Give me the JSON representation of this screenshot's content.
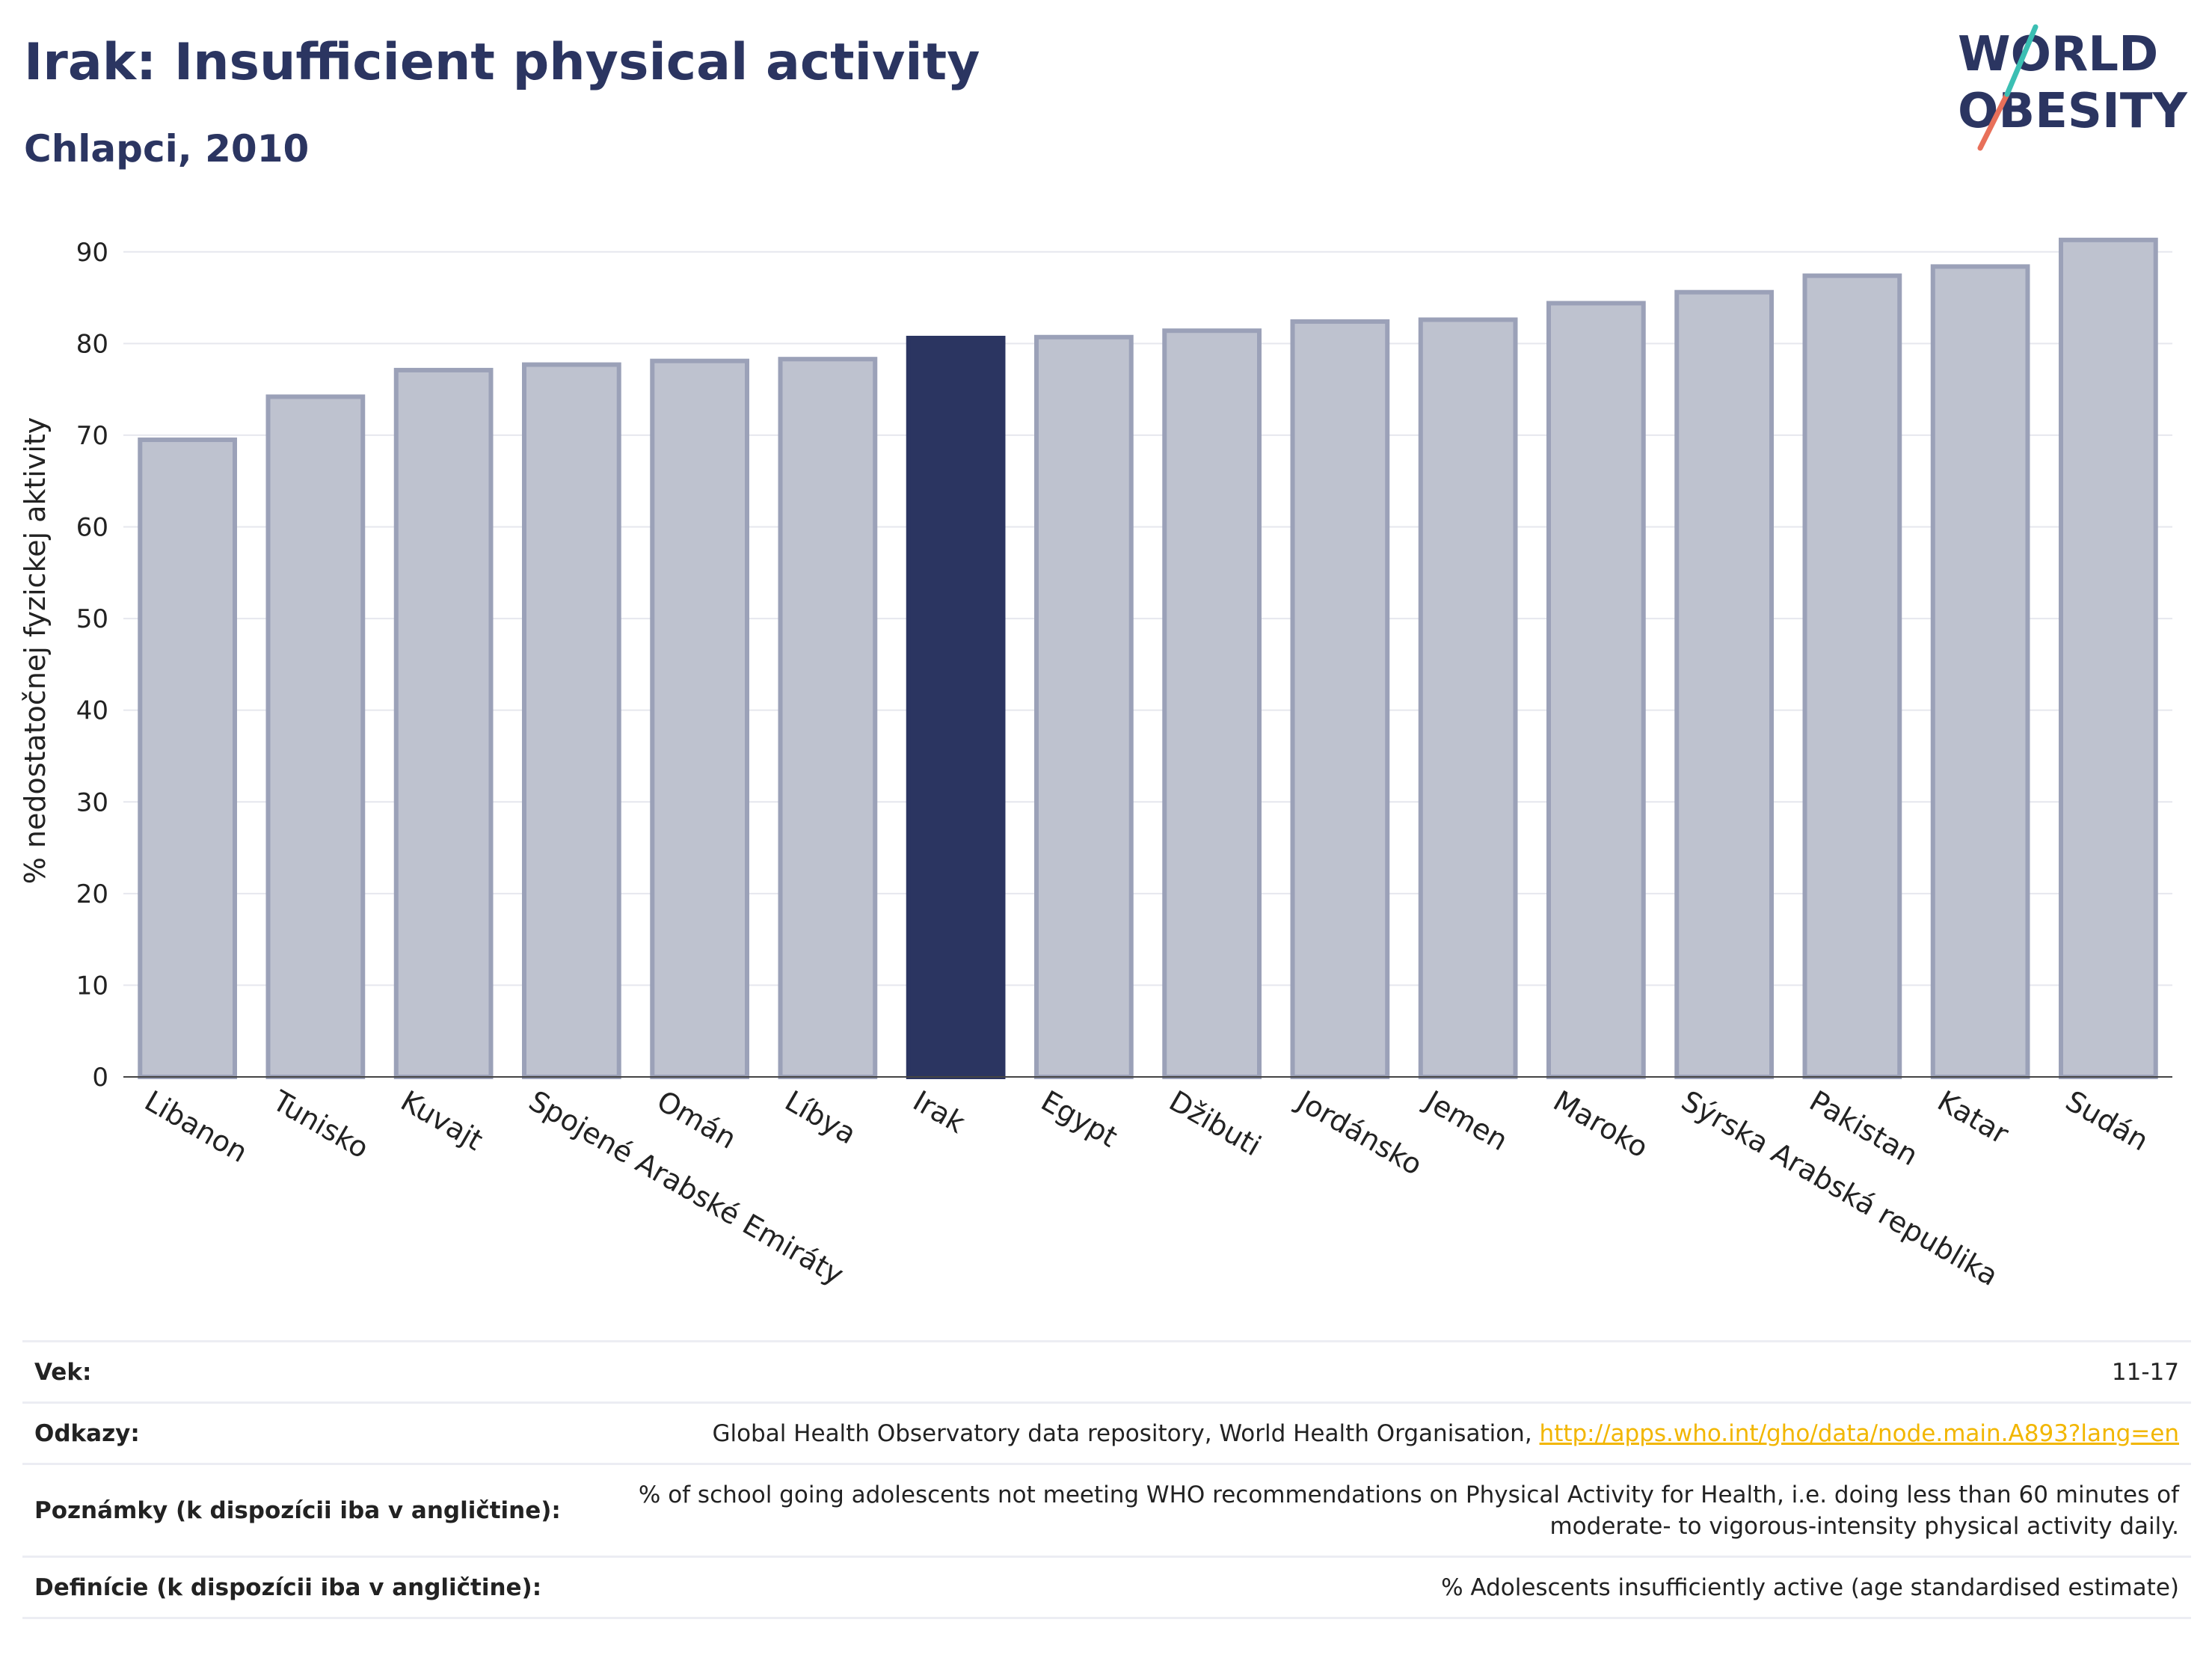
{
  "header": {
    "title": "Irak: Insufficient physical activity",
    "subtitle": "Chlapci, 2010"
  },
  "logo": {
    "line1": "WORLD",
    "line2": "OBESITY"
  },
  "chart_data": {
    "type": "bar",
    "title": "Irak: Insufficient physical activity",
    "subtitle": "Chlapci, 2010",
    "ylabel": "% nedostatočnej fyzickej aktivity",
    "xlabel": "",
    "ylim": [
      0,
      93
    ],
    "yticks": [
      0,
      10,
      20,
      30,
      40,
      50,
      60,
      70,
      80,
      90
    ],
    "grid": true,
    "categories": [
      "Libanon",
      "Tunisko",
      "Kuvajt",
      "Spojené Arabské Emiráty",
      "Omán",
      "Líbya",
      "Irak",
      "Egypt",
      "Džibuti",
      "Jordánsko",
      "Jemen",
      "Maroko",
      "Sýrska Arabská republika",
      "Pakistan",
      "Katar",
      "Sudán"
    ],
    "values": [
      69.5,
      74.2,
      77.1,
      77.7,
      78.1,
      78.3,
      80.6,
      80.7,
      81.4,
      82.4,
      82.6,
      84.4,
      85.6,
      87.4,
      88.4,
      91.3
    ],
    "highlight": "Irak",
    "colors": {
      "highlight": "#2b3561",
      "others": "#bec2cf",
      "outline": "#9ba1b8"
    }
  },
  "meta": {
    "rows": [
      {
        "label": "Vek:",
        "value": "11-17"
      },
      {
        "label": "Odkazy:",
        "value": "Global Health Observatory data repository, World Health Organisation,",
        "link": "http://apps.who.int/gho/data/node.main.A893?lang=en"
      },
      {
        "label": "Poznámky (k dispozícii iba v angličtine):",
        "value": "% of school going adolescents not meeting WHO recommendations on Physical Activity for Health, i.e. doing less than 60 minutes of moderate- to vigorous-intensity physical activity daily."
      },
      {
        "label": "Definície (k dispozícii iba v angličtine):",
        "value": "% Adolescents insufficiently active (age standardised estimate)"
      }
    ]
  }
}
